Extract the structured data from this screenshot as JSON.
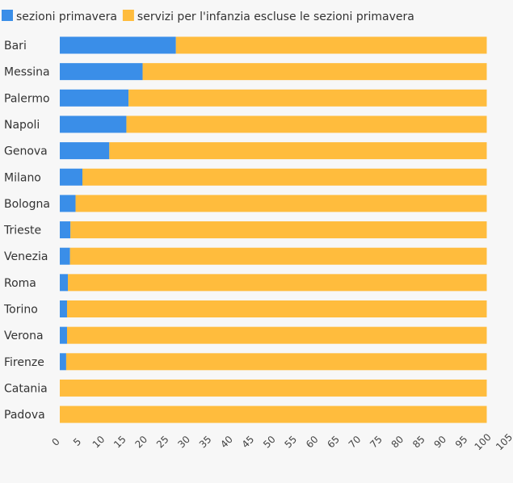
{
  "chart_data": {
    "type": "bar",
    "orientation": "horizontal",
    "stacked": true,
    "categories": [
      "Bari",
      "Messina",
      "Palermo",
      "Napoli",
      "Genova",
      "Milano",
      "Bologna",
      "Trieste",
      "Venezia",
      "Roma",
      "Torino",
      "Verona",
      "Firenze",
      "Catania",
      "Padova"
    ],
    "series": [
      {
        "name": "sezioni primavera",
        "color": "#3a8ee8",
        "values": [
          27.2,
          19.4,
          16.1,
          15.6,
          11.6,
          5.3,
          3.7,
          2.5,
          2.4,
          1.9,
          1.7,
          1.7,
          1.5,
          0,
          0
        ]
      },
      {
        "name": "servizi per l'infanzia escluse le sezioni primavera",
        "color": "#ffbc3d",
        "values": [
          72.8,
          80.6,
          83.9,
          84.4,
          88.4,
          94.7,
          96.3,
          97.5,
          97.6,
          98.1,
          98.3,
          98.3,
          98.5,
          100,
          100
        ]
      }
    ],
    "xlim": [
      0,
      105
    ],
    "xticks": [
      "0",
      "5",
      "10",
      "15",
      "20",
      "25",
      "30",
      "35",
      "40",
      "45",
      "50",
      "55",
      "60",
      "65",
      "70",
      "75",
      "80",
      "85",
      "90",
      "95",
      "100",
      "105"
    ],
    "grid": false,
    "legend_position": "top-left"
  }
}
